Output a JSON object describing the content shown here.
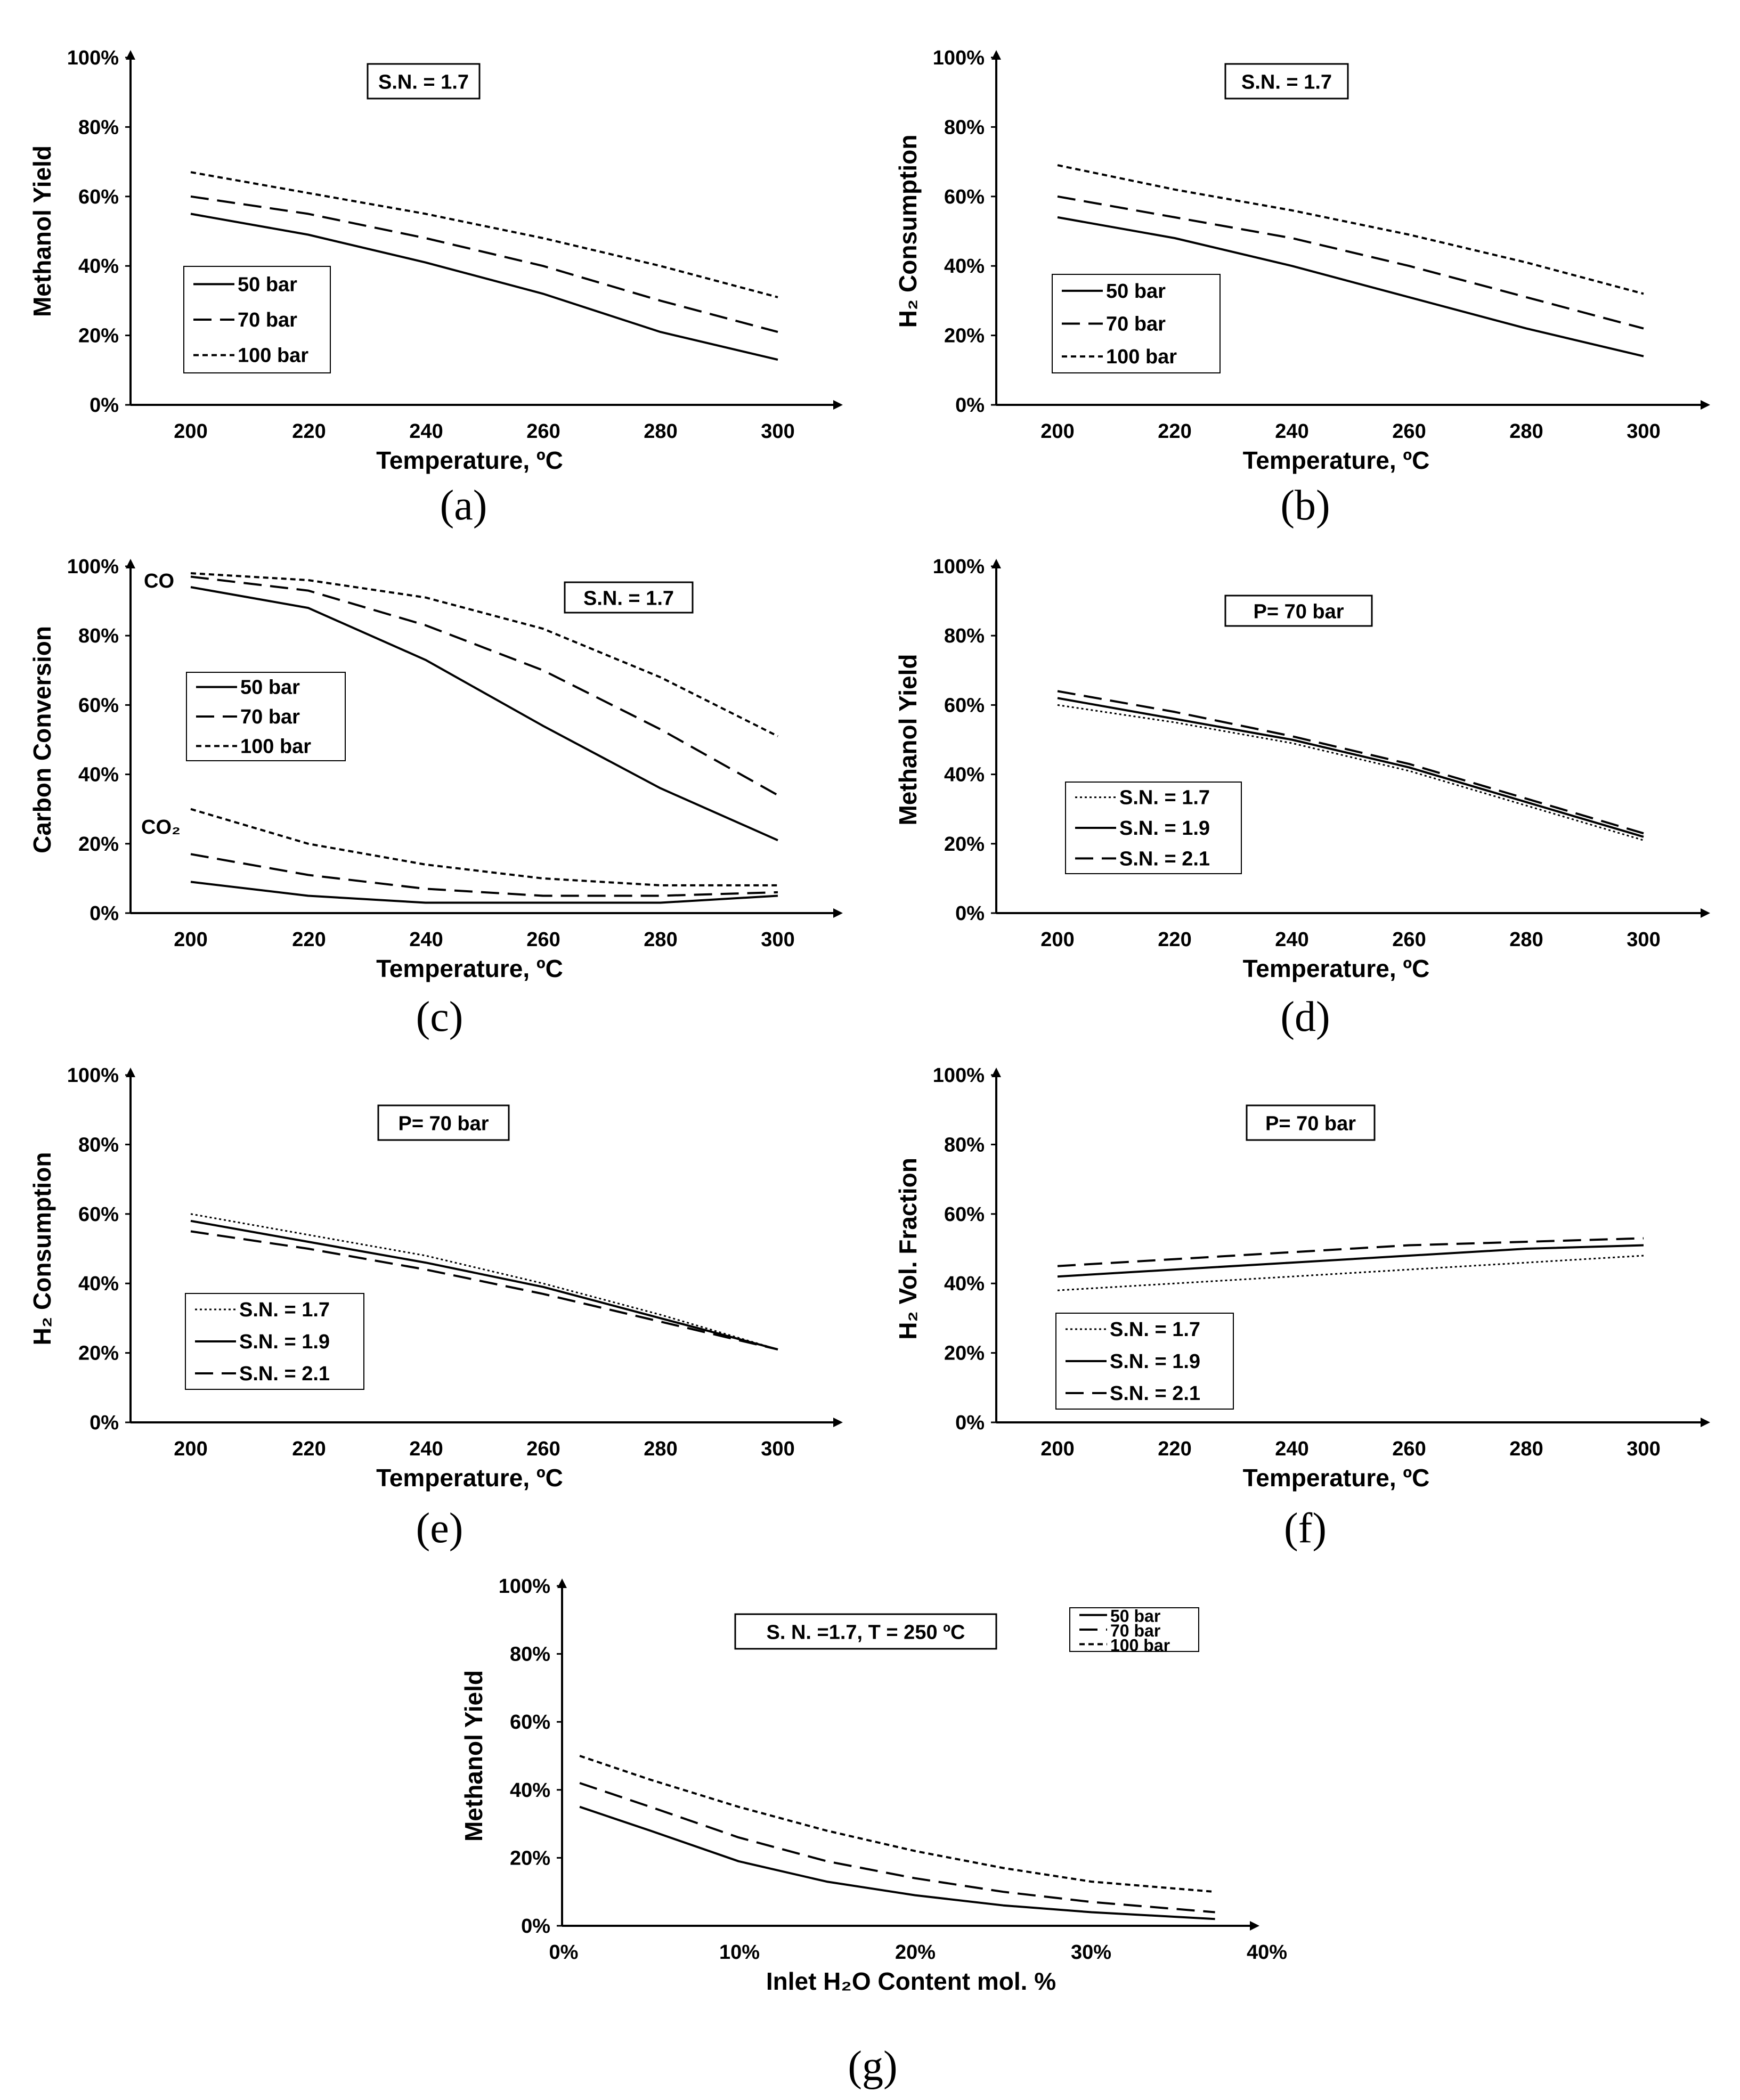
{
  "chart_data": [
    {
      "id": "a",
      "type": "line",
      "caption": "(a)",
      "xlabel": "Temperature, ºC",
      "ylabel": "Methanol Yield",
      "x_ticks": [
        "200",
        "220",
        "240",
        "260",
        "280",
        "300"
      ],
      "y_ticks": [
        "0%",
        "20%",
        "40%",
        "60%",
        "80%",
        "100%"
      ],
      "xlim": [
        190,
        310
      ],
      "ylim": [
        0,
        100
      ],
      "annotation": "S.N. = 1.7",
      "series": [
        {
          "name": "50 bar",
          "style": "solid",
          "x": [
            200,
            220,
            240,
            260,
            280,
            300
          ],
          "values": [
            55,
            49,
            41,
            32,
            21,
            13
          ]
        },
        {
          "name": "70 bar",
          "style": "dash",
          "x": [
            200,
            220,
            240,
            260,
            280,
            300
          ],
          "values": [
            60,
            55,
            48,
            40,
            30,
            21
          ]
        },
        {
          "name": "100 bar",
          "style": "dot",
          "x": [
            200,
            220,
            240,
            260,
            280,
            300
          ],
          "values": [
            67,
            61,
            55,
            48,
            40,
            31
          ]
        }
      ]
    },
    {
      "id": "b",
      "type": "line",
      "caption": "(b)",
      "xlabel": "Temperature, ºC",
      "ylabel": "H₂ Consumption",
      "x_ticks": [
        "200",
        "220",
        "240",
        "260",
        "280",
        "300"
      ],
      "y_ticks": [
        "0%",
        "20%",
        "40%",
        "60%",
        "80%",
        "100%"
      ],
      "xlim": [
        190,
        310
      ],
      "ylim": [
        0,
        100
      ],
      "annotation": "S.N. = 1.7",
      "series": [
        {
          "name": "50 bar",
          "style": "solid",
          "x": [
            200,
            220,
            240,
            260,
            280,
            300
          ],
          "values": [
            54,
            48,
            40,
            31,
            22,
            14
          ]
        },
        {
          "name": "70 bar",
          "style": "dash",
          "x": [
            200,
            220,
            240,
            260,
            280,
            300
          ],
          "values": [
            60,
            54,
            48,
            40,
            31,
            22
          ]
        },
        {
          "name": "100 bar",
          "style": "dot",
          "x": [
            200,
            220,
            240,
            260,
            280,
            300
          ],
          "values": [
            69,
            62,
            56,
            49,
            41,
            32
          ]
        }
      ]
    },
    {
      "id": "c",
      "type": "line",
      "caption": "(c)",
      "xlabel": "Temperature, ºC",
      "ylabel": "Carbon Conversion",
      "x_ticks": [
        "200",
        "220",
        "240",
        "260",
        "280",
        "300"
      ],
      "y_ticks": [
        "0%",
        "20%",
        "40%",
        "60%",
        "80%",
        "100%"
      ],
      "xlim": [
        190,
        310
      ],
      "ylim": [
        0,
        100
      ],
      "annotation": "S.N. = 1.7",
      "labels": [
        "CO",
        "CO₂"
      ],
      "series": [
        {
          "name": "50 bar",
          "style": "solid",
          "x": [
            200,
            220,
            240,
            260,
            280,
            300
          ],
          "values": [
            94,
            88,
            73,
            54,
            36,
            21
          ]
        },
        {
          "name": "70 bar",
          "style": "dash",
          "x": [
            200,
            220,
            240,
            260,
            280,
            300
          ],
          "values": [
            97,
            93,
            83,
            70,
            53,
            34
          ]
        },
        {
          "name": "100 bar",
          "style": "dot",
          "x": [
            200,
            220,
            240,
            260,
            280,
            300
          ],
          "values": [
            98,
            96,
            91,
            82,
            68,
            51
          ]
        },
        {
          "name": "50 bar CO₂",
          "style": "solid",
          "x": [
            200,
            220,
            240,
            260,
            280,
            300
          ],
          "values": [
            9,
            5,
            3,
            3,
            3,
            5
          ],
          "in_legend": false
        },
        {
          "name": "70 bar CO₂",
          "style": "dash",
          "x": [
            200,
            220,
            240,
            260,
            280,
            300
          ],
          "values": [
            17,
            11,
            7,
            5,
            5,
            6
          ],
          "in_legend": false
        },
        {
          "name": "100 bar CO₂",
          "style": "dot",
          "x": [
            200,
            220,
            240,
            260,
            280,
            300
          ],
          "values": [
            30,
            20,
            14,
            10,
            8,
            8
          ],
          "in_legend": false
        }
      ]
    },
    {
      "id": "d",
      "type": "line",
      "caption": "(d)",
      "xlabel": "Temperature, ºC",
      "ylabel": "Methanol Yield",
      "x_ticks": [
        "200",
        "220",
        "240",
        "260",
        "280",
        "300"
      ],
      "y_ticks": [
        "0%",
        "20%",
        "40%",
        "60%",
        "80%",
        "100%"
      ],
      "xlim": [
        190,
        310
      ],
      "ylim": [
        0,
        100
      ],
      "annotation": "P= 70 bar",
      "series": [
        {
          "name": "S.N. = 1.7",
          "style": "finedot",
          "x": [
            200,
            220,
            240,
            260,
            280,
            300
          ],
          "values": [
            60,
            55,
            49,
            41,
            31,
            21
          ]
        },
        {
          "name": "S.N. = 1.9",
          "style": "solid",
          "x": [
            200,
            220,
            240,
            260,
            280,
            300
          ],
          "values": [
            62,
            56,
            50,
            42,
            32,
            22
          ]
        },
        {
          "name": "S.N. = 2.1",
          "style": "dash",
          "x": [
            200,
            220,
            240,
            260,
            280,
            300
          ],
          "values": [
            64,
            58,
            51,
            43,
            33,
            23
          ]
        }
      ]
    },
    {
      "id": "e",
      "type": "line",
      "caption": "(e)",
      "xlabel": "Temperature, ºC",
      "ylabel": "H₂  Consumption",
      "x_ticks": [
        "200",
        "220",
        "240",
        "260",
        "280",
        "300"
      ],
      "y_ticks": [
        "0%",
        "20%",
        "40%",
        "60%",
        "80%",
        "100%"
      ],
      "xlim": [
        190,
        310
      ],
      "ylim": [
        0,
        100
      ],
      "annotation": "P= 70 bar",
      "series": [
        {
          "name": "S.N. = 1.7",
          "style": "finedot",
          "x": [
            200,
            220,
            240,
            260,
            280,
            300
          ],
          "values": [
            60,
            54,
            48,
            40,
            31,
            21
          ]
        },
        {
          "name": "S.N. = 1.9",
          "style": "solid",
          "x": [
            200,
            220,
            240,
            260,
            280,
            300
          ],
          "values": [
            58,
            52,
            46,
            39,
            30,
            21
          ]
        },
        {
          "name": "S.N. = 2.1",
          "style": "dash",
          "x": [
            200,
            220,
            240,
            260,
            280,
            300
          ],
          "values": [
            55,
            50,
            44,
            37,
            29,
            21
          ]
        }
      ]
    },
    {
      "id": "f",
      "type": "line",
      "caption": "(f)",
      "xlabel": "Temperature, ºC",
      "ylabel": "H₂  Vol. Fraction",
      "x_ticks": [
        "200",
        "220",
        "240",
        "260",
        "280",
        "300"
      ],
      "y_ticks": [
        "0%",
        "20%",
        "40%",
        "60%",
        "80%",
        "100%"
      ],
      "xlim": [
        190,
        310
      ],
      "ylim": [
        0,
        100
      ],
      "annotation": "P= 70 bar",
      "series": [
        {
          "name": "S.N. = 1.7",
          "style": "finedot",
          "x": [
            200,
            220,
            240,
            260,
            280,
            300
          ],
          "values": [
            38,
            40,
            42,
            44,
            46,
            48
          ]
        },
        {
          "name": "S.N. = 1.9",
          "style": "solid",
          "x": [
            200,
            220,
            240,
            260,
            280,
            300
          ],
          "values": [
            42,
            44,
            46,
            48,
            50,
            51
          ]
        },
        {
          "name": "S.N. = 2.1",
          "style": "dash",
          "x": [
            200,
            220,
            240,
            260,
            280,
            300
          ],
          "values": [
            45,
            47,
            49,
            51,
            52,
            53
          ]
        }
      ]
    },
    {
      "id": "g",
      "type": "line",
      "caption": "(g)",
      "xlabel": "Inlet H₂O Content mol. %",
      "ylabel": "Methanol Yield",
      "x_ticks": [
        "0%",
        "10%",
        "20%",
        "30%",
        "40%"
      ],
      "y_ticks": [
        "0%",
        "20%",
        "40%",
        "60%",
        "80%",
        "100%"
      ],
      "xlim": [
        0,
        40
      ],
      "ylim": [
        0,
        100
      ],
      "annotation": "S. N. =1.7, T = 250 ºC",
      "series": [
        {
          "name": "50 bar",
          "style": "solid",
          "x": [
            1,
            5,
            10,
            15,
            20,
            25,
            30,
            37
          ],
          "values": [
            35,
            28,
            19,
            13,
            9,
            6,
            4,
            2
          ]
        },
        {
          "name": "70 bar",
          "style": "dash",
          "x": [
            1,
            5,
            10,
            15,
            20,
            25,
            30,
            37
          ],
          "values": [
            42,
            35,
            26,
            19,
            14,
            10,
            7,
            4
          ]
        },
        {
          "name": "100 bar",
          "style": "dot",
          "x": [
            1,
            5,
            10,
            15,
            20,
            25,
            30,
            37
          ],
          "values": [
            50,
            43,
            35,
            28,
            22,
            17,
            13,
            10
          ]
        }
      ]
    }
  ]
}
